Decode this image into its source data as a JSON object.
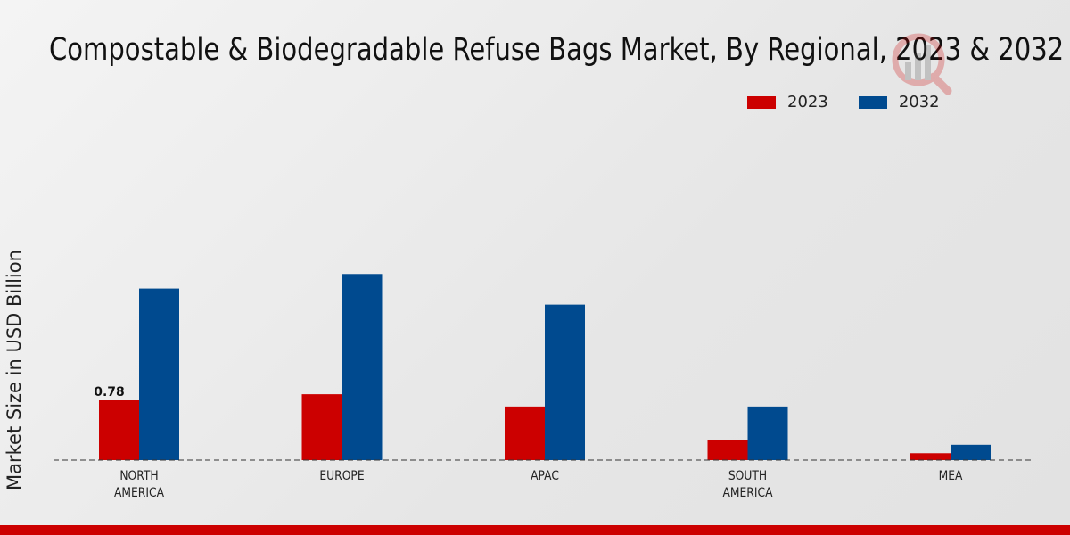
{
  "chart_data": {
    "type": "bar",
    "title": "Compostable & Biodegradable Refuse Bags Market, By Regional, 2023 & 2032",
    "xlabel": "",
    "ylabel": "Market Size in USD Billion",
    "categories": [
      "NORTH\nAMERICA",
      "EUROPE",
      "APAC",
      "SOUTH\nAMERICA",
      "MEA"
    ],
    "series": [
      {
        "name": "2023",
        "color": "#cc0000",
        "values": [
          0.78,
          0.86,
          0.7,
          0.26,
          0.09
        ]
      },
      {
        "name": "2032",
        "color": "#004a8f",
        "values": [
          2.24,
          2.43,
          2.03,
          0.7,
          0.2
        ]
      }
    ],
    "data_labels": [
      {
        "series": "2023",
        "category": "NORTH\nAMERICA",
        "text": "0.78"
      }
    ],
    "ylim": [
      0,
      2.6
    ],
    "grid": false,
    "legend": "top-right"
  }
}
